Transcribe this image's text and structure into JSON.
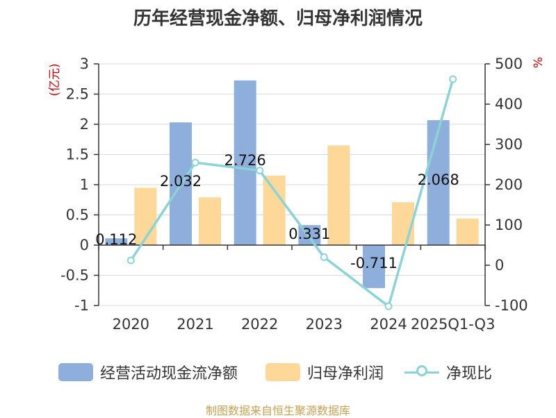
{
  "chart_data": {
    "type": "bar",
    "title": "历年经营现金净额、归母净利润情况",
    "categories": [
      "2020",
      "2021",
      "2022",
      "2023",
      "2024",
      "2025Q1-Q3"
    ],
    "series": [
      {
        "name": "经营活动现金流净额",
        "type": "bar",
        "axis": "left",
        "values": [
          0.112,
          2.032,
          2.726,
          0.331,
          -0.711,
          2.068
        ],
        "labels": [
          "0.112",
          "2.032",
          "2.726",
          "0.331",
          "-0.711",
          "2.068"
        ]
      },
      {
        "name": "归母净利润",
        "type": "bar",
        "axis": "left",
        "values": [
          0.95,
          0.79,
          1.15,
          1.65,
          0.71,
          0.44
        ]
      },
      {
        "name": "净现比",
        "type": "line",
        "axis": "right",
        "values": [
          12,
          255,
          235,
          20,
          -102,
          462
        ]
      }
    ],
    "y_left": {
      "label": "(亿元)",
      "min": -1,
      "max": 3,
      "ticks": [
        -1,
        -0.5,
        0,
        0.5,
        1,
        1.5,
        2,
        2.5,
        3
      ],
      "tick_labels": [
        "-1",
        "-0.5",
        "0",
        "0.5",
        "1",
        "1.5",
        "2",
        "2.5",
        "3"
      ]
    },
    "y_right": {
      "label": "%",
      "min": -100,
      "max": 500,
      "ticks": [
        -100,
        0,
        100,
        200,
        300,
        400,
        500
      ],
      "tick_labels": [
        "-100",
        "0",
        "100",
        "200",
        "300",
        "400",
        "500"
      ]
    },
    "legend": "bottom",
    "grid": true
  },
  "colors": {
    "cash_flow": "#8eaedc",
    "net_profit": "#fed899",
    "ratio": "#8ad3d6",
    "axis_label_left": "#cc0000",
    "axis_label_right": "#cc0000"
  },
  "source": "制图数据来自恒生聚源数据库"
}
